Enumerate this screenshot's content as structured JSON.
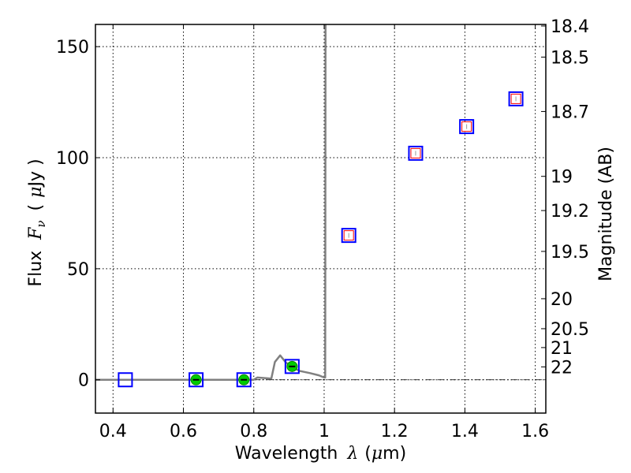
{
  "chart_data": {
    "type": "scatter",
    "title": "",
    "xlabel": "Wavelength",
    "xlabel_symbol": "λ",
    "xlabel_unit_open": "(",
    "xlabel_unit_mu": "μ",
    "xlabel_unit_rest": "m)",
    "ylabel": "Flux",
    "ylabel_symbol": "F",
    "ylabel_sub": "ν",
    "ylabel_unit_open": "(",
    "ylabel_unit_mu": "μ",
    "ylabel_unit_rest": "Jy )",
    "y2label": "Magnitude (AB)",
    "xlim": [
      0.35,
      1.63
    ],
    "ylim": [
      -15,
      160
    ],
    "xticks": [
      0.4,
      0.6,
      0.8,
      1.0,
      1.2,
      1.4,
      1.6
    ],
    "xtick_labels": [
      "0.4",
      "0.6",
      "0.8",
      "1",
      "1.2",
      "1.4",
      "1.6"
    ],
    "yticks": [
      0,
      50,
      100,
      150
    ],
    "ytick_labels": [
      "0",
      "50",
      "100",
      "150"
    ],
    "y2ticks": [
      {
        "label": "18.4",
        "flux": 159.3
      },
      {
        "label": "18.5",
        "flux": 145.3
      },
      {
        "label": "18.7",
        "flux": 120.8
      },
      {
        "label": "19",
        "flux": 91.6
      },
      {
        "label": "19.2",
        "flux": 76.2
      },
      {
        "label": "19.5",
        "flux": 57.8
      },
      {
        "label": "20",
        "flux": 36.5
      },
      {
        "label": "20.5",
        "flux": 23.0
      },
      {
        "label": "21",
        "flux": 14.5
      },
      {
        "label": "22",
        "flux": 5.8
      }
    ],
    "grid": true,
    "zero_line": "dash-dot",
    "model_spectrum": {
      "color": "#808080",
      "x": [
        0.35,
        0.8,
        0.81,
        0.85,
        0.86,
        0.875,
        0.89,
        0.905,
        0.93,
        0.96,
        0.985,
        1.0,
        1.003,
        1.004
      ],
      "y": [
        0,
        0,
        1,
        0.5,
        8,
        11,
        8,
        6,
        4,
        3,
        2,
        1,
        1,
        160
      ]
    },
    "series": [
      {
        "marker": "square",
        "edge_color": "#0000ff",
        "points": [
          {
            "x": 0.435,
            "y": 0
          },
          {
            "x": 0.636,
            "y": 0
          },
          {
            "x": 0.772,
            "y": 0
          },
          {
            "x": 0.909,
            "y": 6
          },
          {
            "x": 1.07,
            "y": 65
          },
          {
            "x": 1.26,
            "y": 102
          },
          {
            "x": 1.405,
            "y": 114
          },
          {
            "x": 1.545,
            "y": 126.5
          }
        ]
      },
      {
        "marker": "circle-filled",
        "fill_color": "#00cc00",
        "points": [
          {
            "x": 0.636,
            "y": 0
          },
          {
            "x": 0.772,
            "y": 0
          },
          {
            "x": 0.909,
            "y": 6
          }
        ]
      },
      {
        "marker": "square-open",
        "edge_color": "#ff0000",
        "points": [
          {
            "x": 1.07,
            "y": 65
          },
          {
            "x": 1.26,
            "y": 102
          },
          {
            "x": 1.405,
            "y": 114
          },
          {
            "x": 1.545,
            "y": 126.5
          }
        ]
      }
    ]
  }
}
